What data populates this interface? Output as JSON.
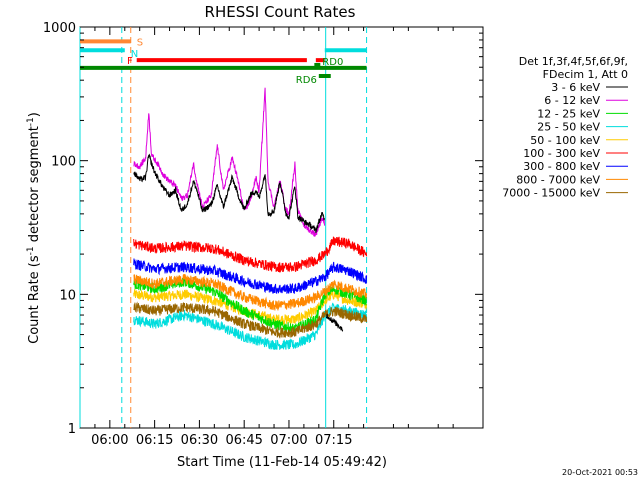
{
  "chart_data": {
    "type": "line",
    "title": "RHESSI Count Rates",
    "xlabel": "Start Time (11-Feb-14 05:49:42)",
    "ylabel_parts": {
      "pre": "Count Rate (s",
      "sup1": "-1",
      "mid": " detector segment",
      "sup2": "-1",
      "post": ")"
    },
    "ylabel": "Count Rate (s-1 detector segment-1)",
    "yscale": "log",
    "ylim": [
      1,
      1000
    ],
    "xlim_min": [
      -10,
      125
    ],
    "x_unit": "minutes after 06:00",
    "x_ticks": [
      {
        "value": 0,
        "label": "06:00"
      },
      {
        "value": 15,
        "label": "06:15"
      },
      {
        "value": 30,
        "label": "06:30"
      },
      {
        "value": 45,
        "label": "06:45"
      },
      {
        "value": 60,
        "label": "07:00"
      },
      {
        "value": 75,
        "label": "07:15"
      }
    ],
    "y_ticks": [
      {
        "value": 1,
        "label": "1"
      },
      {
        "value": 10,
        "label": "10"
      },
      {
        "value": 100,
        "label": "100"
      },
      {
        "value": 1000,
        "label": "1000"
      }
    ],
    "legend_header": [
      "Det 1f,3f,4f,5f,6f,9f,",
      "FDecim 1, Att 0"
    ],
    "legend_position": "right",
    "series": [
      {
        "name": "3 - 6 keV",
        "color": "#000000",
        "t": [
          8,
          10,
          12,
          13,
          15,
          17,
          18,
          20,
          22,
          24,
          26,
          28,
          29,
          31,
          34,
          36,
          38,
          41,
          43,
          45,
          47,
          49,
          50,
          52,
          53,
          55,
          57,
          59,
          60,
          62,
          63,
          65,
          67,
          69,
          71,
          72,
          72.5,
          76,
          78
        ],
        "v": [
          82,
          72,
          75,
          110,
          82,
          68,
          62,
          55,
          60,
          42,
          48,
          70,
          62,
          42,
          47,
          65,
          45,
          75,
          55,
          43,
          55,
          60,
          52,
          80,
          40,
          42,
          70,
          40,
          38,
          65,
          38,
          35,
          33,
          30,
          40,
          36,
          7,
          6,
          5.5
        ]
      },
      {
        "name": "6 - 12 keV",
        "color": "#dd00dd",
        "t": [
          8,
          10,
          12,
          13,
          14,
          16,
          18,
          20,
          22,
          24,
          26,
          28,
          29,
          31,
          34,
          36,
          38,
          41,
          43,
          45,
          47,
          49,
          50,
          52,
          53,
          55,
          57,
          59,
          60,
          62,
          63,
          65,
          67,
          69,
          71,
          72
        ],
        "v": [
          95,
          90,
          105,
          230,
          110,
          95,
          78,
          70,
          65,
          52,
          55,
          95,
          72,
          45,
          55,
          130,
          60,
          105,
          70,
          42,
          50,
          75,
          58,
          350,
          70,
          45,
          70,
          43,
          40,
          95,
          42,
          33,
          30,
          28,
          37,
          34
        ]
      },
      {
        "name": "12 - 25 keV",
        "color": "#00dd00",
        "t": [
          8,
          15,
          25,
          35,
          45,
          55,
          62,
          69,
          72,
          75,
          80,
          86
        ],
        "v": [
          12,
          11,
          12.5,
          10.5,
          7.5,
          6,
          5.5,
          6.5,
          10,
          11,
          10,
          9
        ]
      },
      {
        "name": "25 - 50 keV",
        "color": "#00dddd",
        "t": [
          8,
          15,
          25,
          35,
          45,
          55,
          62,
          69,
          72,
          75,
          80,
          86
        ],
        "v": [
          6.5,
          6,
          7,
          6,
          4.8,
          4.2,
          4.2,
          5,
          7,
          8,
          7.5,
          7
        ]
      },
      {
        "name": "50 - 100 keV",
        "color": "#ffcc00",
        "t": [
          8,
          15,
          25,
          35,
          45,
          55,
          62,
          69,
          72,
          75,
          80,
          86
        ],
        "v": [
          10,
          9.5,
          10,
          9,
          7.5,
          6.5,
          6.5,
          7.5,
          9,
          10,
          9,
          8.5
        ]
      },
      {
        "name": "100 - 300 keV",
        "color": "#ff0000",
        "t": [
          8,
          15,
          25,
          35,
          45,
          55,
          62,
          69,
          72,
          75,
          80,
          86
        ],
        "v": [
          24,
          22,
          23,
          22,
          18,
          16,
          16,
          18,
          20,
          25,
          24,
          20
        ]
      },
      {
        "name": "300 - 800 keV",
        "color": "#0000ff",
        "t": [
          8,
          15,
          25,
          35,
          45,
          55,
          62,
          69,
          72,
          75,
          80,
          86
        ],
        "v": [
          17,
          15.5,
          16,
          15,
          12.5,
          11,
          11,
          12.5,
          13.5,
          16,
          15,
          13
        ]
      },
      {
        "name": "800 - 7000 keV",
        "color": "#ff8800",
        "t": [
          8,
          15,
          25,
          35,
          45,
          55,
          62,
          69,
          72,
          75,
          80,
          86
        ],
        "v": [
          13,
          12,
          13,
          12,
          9.5,
          8.2,
          8.5,
          9.5,
          10.5,
          12,
          11,
          10
        ]
      },
      {
        "name": "7000 - 15000 keV",
        "color": "#996600",
        "t": [
          8,
          15,
          25,
          35,
          45,
          55,
          62,
          69,
          72,
          75,
          80,
          86
        ],
        "v": [
          8,
          7.5,
          8,
          7.5,
          6,
          5.2,
          5.2,
          6,
          7,
          7.5,
          7,
          6.5
        ]
      }
    ],
    "flag_bars": [
      {
        "label": "S",
        "color": "#ff8833",
        "t0": -10,
        "t1": 7,
        "y": 780
      },
      {
        "label": "N",
        "color": "#00dddd",
        "t0": -10,
        "t1": 5,
        "y": 670
      },
      {
        "label": "F",
        "color": "#ff0000",
        "t0": 9,
        "t1": 66,
        "y": 565
      },
      {
        "label": "F",
        "color": "#ff0000",
        "t0": 69,
        "t1": 72,
        "y": 565
      },
      {
        "label": "",
        "color": "#00dddd",
        "t0": 72,
        "t1": 86,
        "y": 670
      },
      {
        "label": "",
        "color": "#008800",
        "t0": -10,
        "t1": 86,
        "y": 495
      },
      {
        "label": "RD6",
        "color": "#008800",
        "t0": 70,
        "t1": 74,
        "y": 430
      },
      {
        "label": "RD0",
        "color": "#008800",
        "t0": 68.5,
        "t1": 70.5,
        "y": 520
      }
    ],
    "vlines": [
      {
        "t": -10,
        "color": "#00dddd",
        "style": "solid"
      },
      {
        "t": 4,
        "color": "#00dddd",
        "style": "dashed"
      },
      {
        "t": 7,
        "color": "#ff8833",
        "style": "dashed"
      },
      {
        "t": 72.3,
        "color": "#00dddd",
        "style": "solid"
      },
      {
        "t": 86,
        "color": "#00dddd",
        "style": "dashed"
      }
    ]
  },
  "timestamp": "20-Oct-2021 00:53"
}
